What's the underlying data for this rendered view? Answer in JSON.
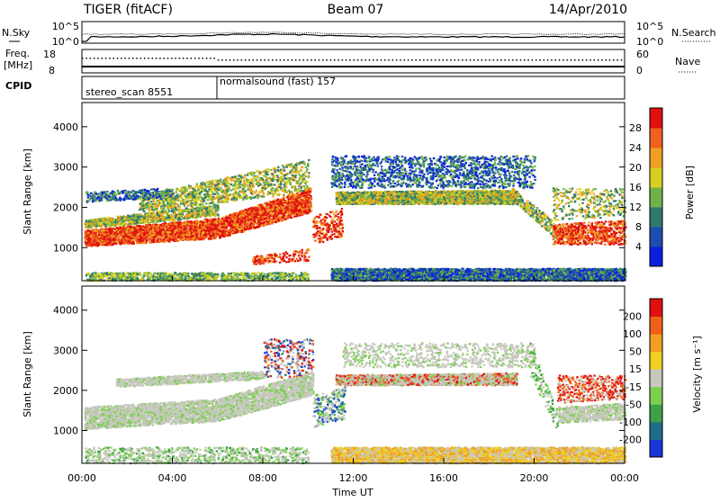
{
  "header": {
    "title": "TIGER (fitACF)",
    "beam": "Beam 07",
    "date": "14/Apr/2010"
  },
  "chart_data": [
    {
      "type": "line",
      "panel": "noise",
      "left_label": "N.Sky",
      "right_label": "N.Search",
      "left_ticks": [
        "10^5",
        "10^0"
      ],
      "right_ticks": [
        "10^5",
        "10^0"
      ]
    },
    {
      "type": "scatter",
      "panel": "freq",
      "left_label_line1": "Freq.",
      "left_label_line2": "[MHz]",
      "right_label": "Nave",
      "left_ticks": [
        "18",
        "8"
      ],
      "right_ticks": [
        "60",
        "0"
      ]
    },
    {
      "type": "table",
      "panel": "cpid",
      "label": "CPID",
      "segments": [
        {
          "name": "stereo_scan 8551",
          "start_hour": 0,
          "end_hour": 6
        },
        {
          "name": "normalsound (fast) 157",
          "start_hour": 6,
          "end_hour": 24
        }
      ]
    },
    {
      "type": "heatmap",
      "panel": "power",
      "ylabel": "Slant Range [km]",
      "yticks": [
        1000,
        2000,
        3000,
        4000
      ],
      "ylim": [
        180,
        4600
      ],
      "colorbar_label": "Power [dB]",
      "colorbar_ticks": [
        4,
        8,
        12,
        16,
        20,
        24,
        28
      ],
      "colorbar_colors": [
        "#0a1fe0",
        "#1d4db0",
        "#2e7a6e",
        "#6fb24a",
        "#d8d020",
        "#f0a020",
        "#f06020",
        "#e01010"
      ]
    },
    {
      "type": "heatmap",
      "panel": "velocity",
      "ylabel": "Slant Range [km]",
      "yticks": [
        1000,
        2000,
        3000,
        4000
      ],
      "ylim": [
        180,
        4600
      ],
      "colorbar_label": "Velocity [m s⁻¹]",
      "colorbar_ticks": [
        "200",
        "100",
        "50",
        "15",
        "-15",
        "-50",
        "-100",
        "-200"
      ],
      "colorbar_colors": [
        "#1a36d8",
        "#1e6e8a",
        "#3ca048",
        "#7cd050",
        "#c8c8c0",
        "#f0d020",
        "#f0a020",
        "#f06018",
        "#e01010"
      ]
    }
  ],
  "xaxis": {
    "xlabel": "Time UT",
    "ticks": [
      "00:00",
      "04:00",
      "08:00",
      "12:00",
      "16:00",
      "20:00",
      "00:00"
    ]
  }
}
